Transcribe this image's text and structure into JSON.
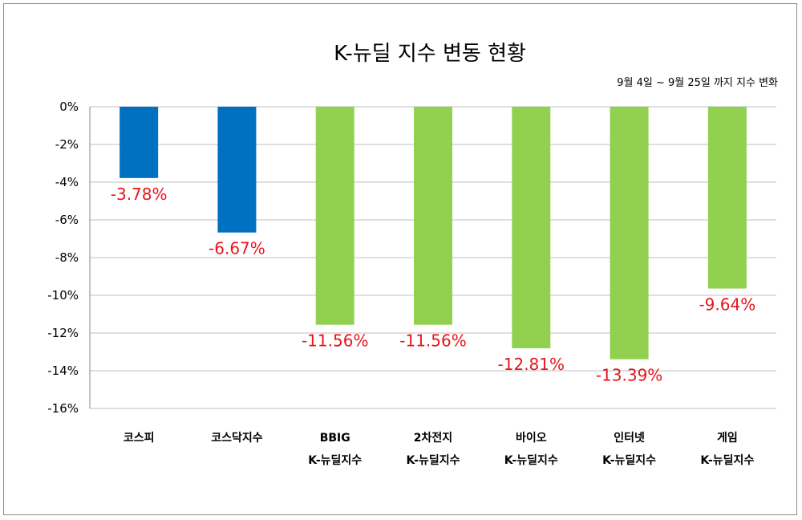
{
  "chart_data": {
    "type": "bar",
    "title": "K-뉴딜 지수 변동 현황",
    "subtitle": "9월 4일 ~ 9월 25일 까지 지수 변화",
    "categories": [
      [
        "코스피"
      ],
      [
        "코스닥지수"
      ],
      [
        "BBIG",
        "K-뉴딜지수"
      ],
      [
        "2차전지",
        "K-뉴딜지수"
      ],
      [
        "바이오",
        "K-뉴딜지수"
      ],
      [
        "인터넷",
        "K-뉴딜지수"
      ],
      [
        "게임",
        "K-뉴딜지수"
      ]
    ],
    "values": [
      -3.78,
      -6.67,
      -11.56,
      -11.56,
      -12.81,
      -13.39,
      -9.64
    ],
    "data_labels": [
      "-3.78%",
      "-6.67%",
      "-11.56%",
      "-11.56%",
      "-12.81%",
      "-13.39%",
      "-9.64%"
    ],
    "ylim": [
      -16,
      0
    ],
    "yticks": [
      0,
      -2,
      -4,
      -6,
      -8,
      -10,
      -12,
      -14,
      -16
    ],
    "ytick_labels": [
      "0%",
      "-2%",
      "-4%",
      "-6%",
      "-8%",
      "-10%",
      "-12%",
      "-14%",
      "-16%"
    ],
    "grid": true,
    "legend": "none",
    "colors": {
      "index": "#0070c0",
      "newdeal": "#92d050",
      "label": "#e8141c"
    },
    "bar_colors": [
      "#0070c0",
      "#0070c0",
      "#92d050",
      "#92d050",
      "#92d050",
      "#92d050",
      "#92d050"
    ]
  }
}
